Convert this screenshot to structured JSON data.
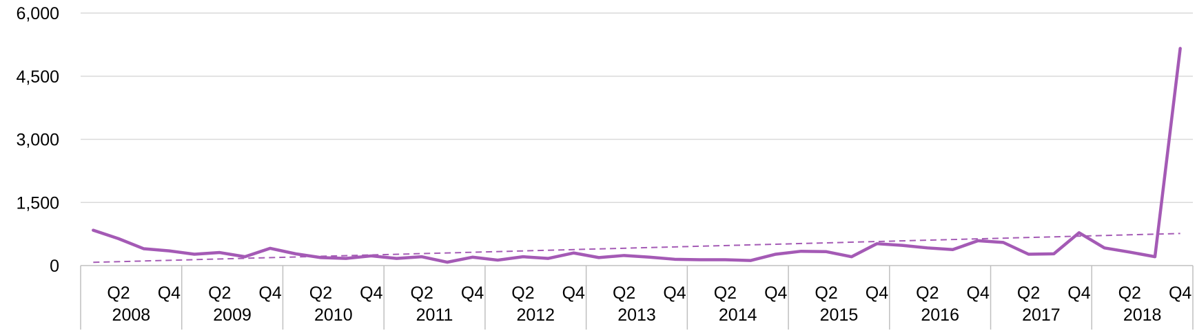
{
  "chart_data": {
    "type": "line",
    "title": "",
    "xlabel": "",
    "ylabel": "",
    "ylim": [
      0,
      6000
    ],
    "yticks": [
      0,
      1500,
      3000,
      4500,
      6000
    ],
    "ytick_labels": [
      "0",
      "1,500",
      "3,000",
      "4,500",
      "6,000"
    ],
    "grid": true,
    "legend": "none",
    "colors": {
      "series": "#A45AB5",
      "trend": "#A45AB5",
      "grid": "#D9D9D9",
      "axis": "#BFBFBF"
    },
    "years": [
      "2008",
      "2009",
      "2010",
      "2011",
      "2012",
      "2013",
      "2014",
      "2015",
      "2016",
      "2017",
      "2018"
    ],
    "quarter_labels": [
      "Q2",
      "Q4"
    ],
    "series": [
      {
        "values": [
          840,
          640,
          400,
          350,
          270,
          310,
          210,
          410,
          280,
          190,
          170,
          230,
          170,
          210,
          80,
          200,
          130,
          210,
          170,
          300,
          190,
          240,
          200,
          150,
          140,
          140,
          120,
          270,
          340,
          330,
          210,
          520,
          480,
          420,
          380,
          590,
          550,
          270,
          280,
          780,
          420,
          320,
          210,
          5160
        ]
      }
    ],
    "trendline": {
      "style": "dashed",
      "type": "linear"
    }
  }
}
